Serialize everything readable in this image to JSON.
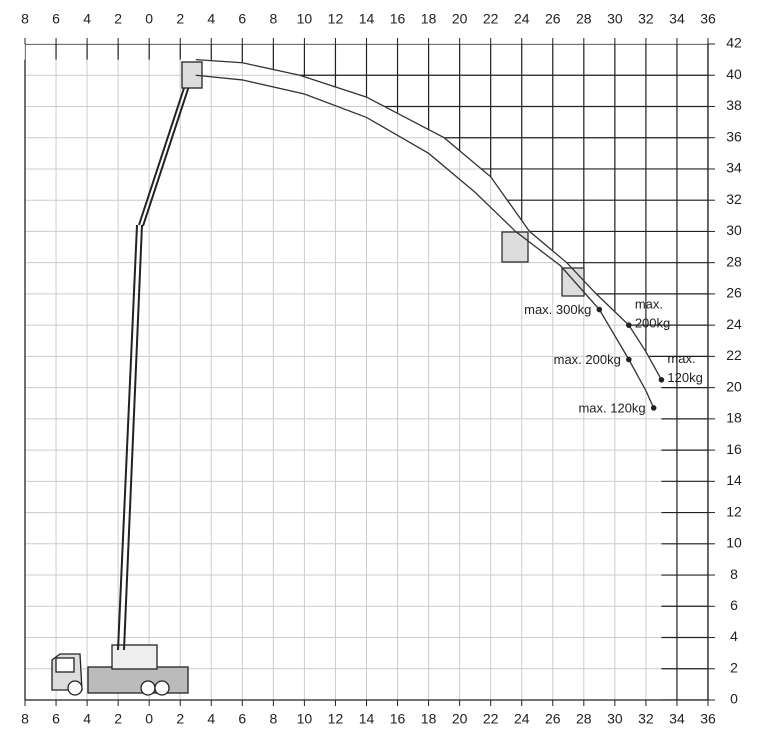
{
  "chart_data": {
    "type": "line",
    "xlim": [
      -8,
      36
    ],
    "ylim": [
      0,
      42
    ],
    "xticks": [
      {
        "value": -8,
        "label": "8"
      },
      {
        "value": -6,
        "label": "6"
      },
      {
        "value": -4,
        "label": "4"
      },
      {
        "value": -2,
        "label": "2"
      },
      0,
      2,
      4,
      6,
      8,
      10,
      12,
      14,
      16,
      18,
      20,
      22,
      24,
      26,
      28,
      30,
      32,
      34,
      36
    ],
    "yticks": [
      0,
      2,
      4,
      6,
      8,
      10,
      12,
      14,
      16,
      18,
      20,
      22,
      24,
      26,
      28,
      30,
      32,
      34,
      36,
      38,
      40,
      42
    ],
    "grid": true,
    "series": [
      {
        "color": "#333333",
        "x": [
          3,
          6,
          9.7,
          14,
          19,
          22,
          24.5,
          26.9,
          28.8,
          30.9,
          32,
          33
        ],
        "values": [
          41,
          40.8,
          40,
          38.6,
          36,
          33.5,
          30,
          28,
          26,
          24,
          22.3,
          20.5
        ]
      },
      {
        "color": "#333333",
        "x": [
          3,
          6,
          10,
          14,
          18,
          21,
          23.6,
          26.5,
          29,
          30.9,
          32,
          32.5
        ],
        "values": [
          40,
          39.7,
          38.8,
          37.3,
          35,
          32.5,
          30,
          27.8,
          25,
          21.8,
          19.8,
          18.7
        ]
      }
    ],
    "annotations": [
      {
        "x": 29,
        "y": 25,
        "label": "max. 300kg"
      },
      {
        "x": 30.9,
        "y": 21.8,
        "label": "max. 200kg"
      },
      {
        "x": 32.5,
        "y": 18.7,
        "label": "max. 120kg"
      },
      {
        "x": 30.9,
        "y": 24,
        "label_lines": [
          "max.",
          "200kg"
        ]
      },
      {
        "x": 33,
        "y": 20.5,
        "label_lines": [
          "max.",
          "120kg"
        ]
      }
    ]
  }
}
